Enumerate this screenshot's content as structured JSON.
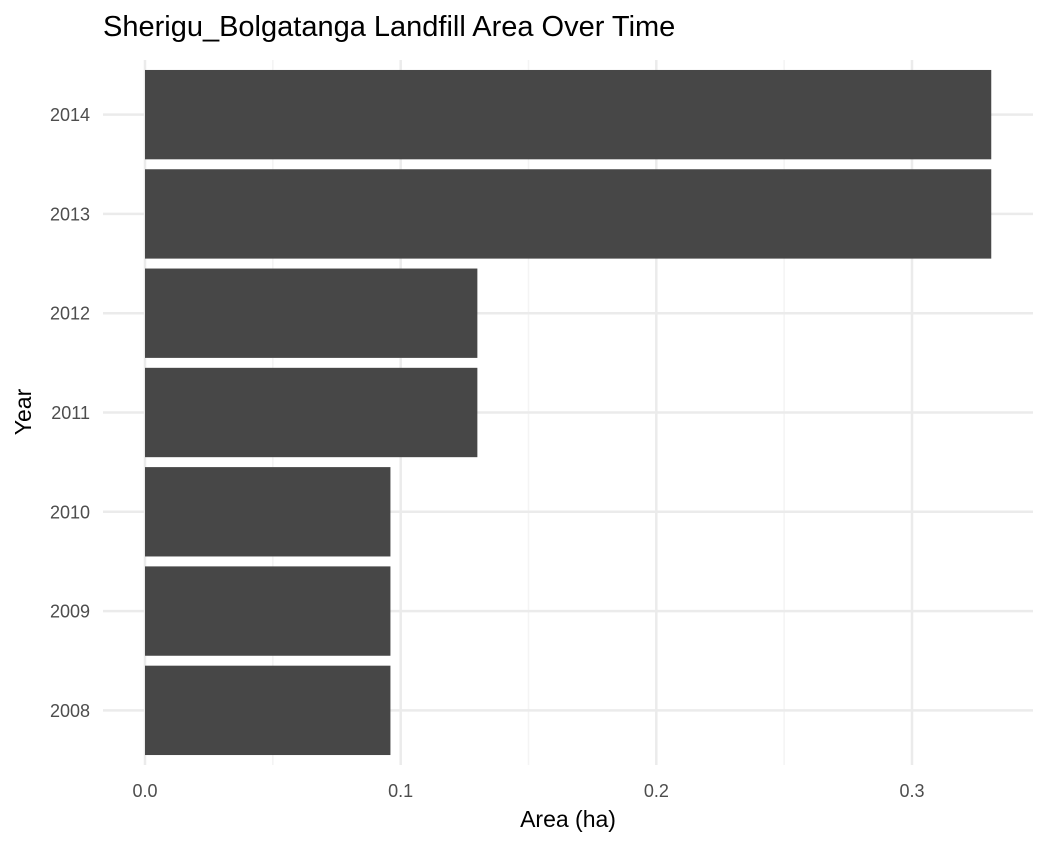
{
  "chart_data": {
    "type": "bar",
    "orientation": "horizontal",
    "title": "Sherigu_Bolgatanga Landfill Area Over Time",
    "xlabel": "Area (ha)",
    "ylabel": "Year",
    "categories": [
      "2008",
      "2009",
      "2010",
      "2011",
      "2012",
      "2013",
      "2014"
    ],
    "values": [
      0.096,
      0.096,
      0.096,
      0.13,
      0.13,
      0.331,
      0.331
    ],
    "xlim": [
      0,
      0.348
    ],
    "x_ticks": [
      0.0,
      0.1,
      0.2,
      0.3
    ],
    "x_tick_labels": [
      "0.0",
      "0.1",
      "0.2",
      "0.3"
    ],
    "grid": true,
    "legend": "none",
    "colors": {
      "bar": "#474747",
      "grid_major": "#ebebeb",
      "grid_minor": "#f4f4f4",
      "background": "#ffffff"
    }
  }
}
